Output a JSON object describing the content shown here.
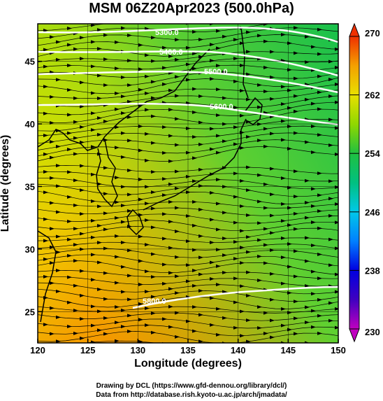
{
  "title": "MSM 06Z20Apr2023 (500.0hPa)",
  "x_axis": {
    "label": "Longitude (degrees)",
    "ticks": [
      "120",
      "125",
      "130",
      "135",
      "140",
      "145",
      "150"
    ]
  },
  "y_axis": {
    "label": "Latitude  (degrees)",
    "ticks": [
      "25",
      "30",
      "35",
      "40",
      "45"
    ]
  },
  "colorbar": {
    "ticks": [
      "230",
      "238",
      "246",
      "254",
      "262",
      "270"
    ]
  },
  "contours": [
    {
      "label": "5300.0"
    },
    {
      "label": "5400.0"
    },
    {
      "label": "5500.0"
    },
    {
      "label": "5600.0"
    },
    {
      "label": "5800.0"
    }
  ],
  "credits": {
    "line1": "Drawing by DCL (https://www.gfd-dennou.org/library/dcl/)",
    "line2": "Data from http://database.rish.kyoto-u.ac.jp/arch/jmadata/"
  },
  "chart_data": {
    "type": "heatmap",
    "title": "MSM 06Z20Apr2023 (500.0hPa)",
    "xlabel": "Longitude (degrees)",
    "ylabel": "Latitude  (degrees)",
    "xlim": [
      120,
      150
    ],
    "ylim": [
      22.5,
      48
    ],
    "x_ticks": [
      120,
      125,
      130,
      135,
      140,
      145,
      150
    ],
    "y_ticks": [
      25,
      30,
      35,
      40,
      45
    ],
    "colorbar_range": [
      230,
      270
    ],
    "colorbar_ticks": [
      230,
      238,
      246,
      254,
      262,
      270
    ],
    "contour_levels": [
      5300,
      5400,
      5500,
      5600,
      5800
    ],
    "grid": true
  }
}
